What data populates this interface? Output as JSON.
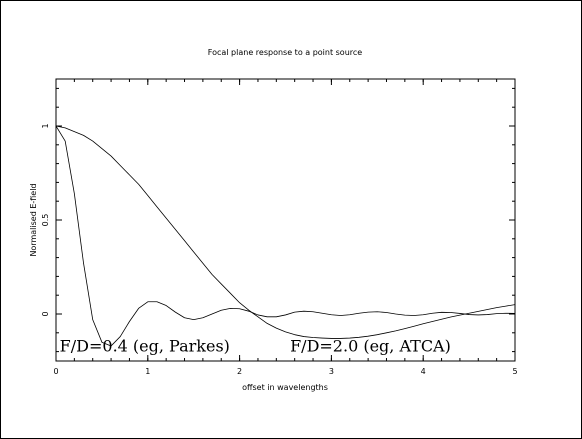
{
  "chart_data": {
    "type": "line",
    "title": "Focal plane response to a point source",
    "xlabel": "offset in wavelengths",
    "ylabel": "Normalised E-field",
    "xlim": [
      0,
      5
    ],
    "ylim": [
      -0.25,
      1.25
    ],
    "grid": false,
    "x_ticks": [
      0,
      1,
      2,
      3,
      4,
      5
    ],
    "x_tick_labels": [
      "0",
      "1",
      "2",
      "3",
      "4",
      "5"
    ],
    "y_ticks": [
      0,
      0.5,
      1
    ],
    "y_tick_labels": [
      "0",
      "0.5",
      "1"
    ],
    "x": [
      0,
      0.1,
      0.2,
      0.3,
      0.4,
      0.5,
      0.6,
      0.7,
      0.8,
      0.9,
      1.0,
      1.1,
      1.2,
      1.3,
      1.4,
      1.5,
      1.6,
      1.7,
      1.8,
      1.9,
      2.0,
      2.1,
      2.2,
      2.3,
      2.4,
      2.5,
      2.6,
      2.7,
      2.8,
      2.9,
      3.0,
      3.1,
      3.2,
      3.3,
      3.4,
      3.5,
      3.6,
      3.7,
      3.8,
      3.9,
      4.0,
      4.1,
      4.2,
      4.3,
      4.4,
      4.5,
      4.6,
      4.7,
      4.8,
      4.9,
      5.0
    ],
    "series": [
      {
        "values": [
          1.0,
          0.92,
          0.64,
          0.27,
          -0.03,
          -0.15,
          -0.17,
          -0.12,
          -0.04,
          0.03,
          0.065,
          0.065,
          0.045,
          0.01,
          -0.02,
          -0.03,
          -0.02,
          0.0,
          0.02,
          0.03,
          0.028,
          0.015,
          -0.005,
          -0.015,
          -0.015,
          -0.005,
          0.01,
          0.015,
          0.012,
          0.004,
          -0.004,
          -0.008,
          -0.004,
          0.004,
          0.01,
          0.012,
          0.008,
          0.0,
          -0.006,
          -0.008,
          -0.004,
          0.004,
          0.009,
          0.008,
          0.003,
          -0.003,
          -0.005,
          -0.003,
          0.002,
          0.004,
          0.003
        ]
      },
      {
        "values": [
          1.0,
          0.99,
          0.97,
          0.95,
          0.92,
          0.88,
          0.84,
          0.79,
          0.74,
          0.69,
          0.63,
          0.57,
          0.51,
          0.45,
          0.39,
          0.33,
          0.27,
          0.21,
          0.16,
          0.11,
          0.06,
          0.02,
          -0.015,
          -0.05,
          -0.075,
          -0.095,
          -0.11,
          -0.12,
          -0.125,
          -0.128,
          -0.13,
          -0.13,
          -0.128,
          -0.124,
          -0.118,
          -0.11,
          -0.1,
          -0.09,
          -0.078,
          -0.065,
          -0.052,
          -0.04,
          -0.028,
          -0.016,
          -0.006,
          0.004,
          0.014,
          0.024,
          0.034,
          0.042,
          0.05
        ]
      }
    ],
    "annotations": [
      {
        "text": "F/D=0.4 (eg, Parkes)",
        "x": 0.04,
        "y": -0.2
      },
      {
        "text": "F/D=2.0 (eg, ATCA)",
        "x": 2.55,
        "y": -0.2
      }
    ]
  }
}
